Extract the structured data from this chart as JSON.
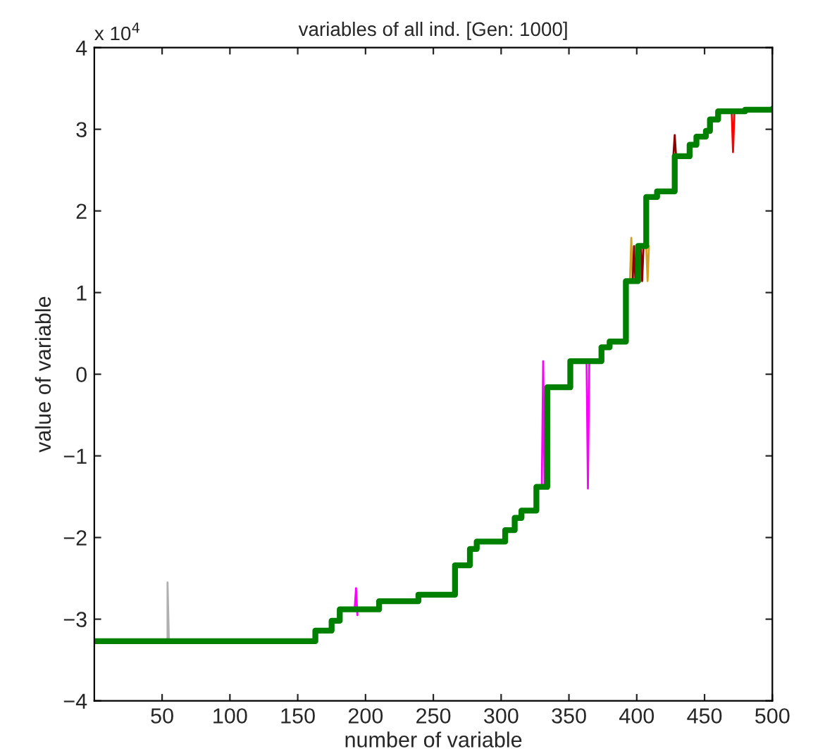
{
  "chart_data": {
    "type": "line",
    "title": "variables of all ind. [Gen: 1000]",
    "xlabel": "number of variable",
    "ylabel": "value of variable",
    "annotations": [
      "x 10$^{4}$"
    ],
    "xlim": [
      0,
      500
    ],
    "ylim": [
      -4,
      4
    ],
    "xticks": [
      50,
      100,
      150,
      200,
      250,
      300,
      350,
      400,
      450,
      500
    ],
    "yticks": [
      {
        "value": -4,
        "label": "−4"
      },
      {
        "value": -3,
        "label": "−3"
      },
      {
        "value": -2,
        "label": "−2"
      },
      {
        "value": -1,
        "label": "−1"
      },
      0,
      1,
      2,
      3,
      4
    ],
    "grid": false,
    "legend": false,
    "marker": "none",
    "line_style": "solid",
    "series": [
      {
        "color": "#b0b0b0",
        "x": [
          54,
          54,
          55
        ],
        "values": [
          -3.27,
          -2.55,
          -3.27
        ]
      },
      {
        "color": "#ff00ff",
        "x": [
          192,
          193,
          194
        ],
        "values": [
          -2.88,
          -2.62,
          -2.95
        ]
      },
      {
        "color": "#ff00ff",
        "x": [
          330,
          331,
          332
        ],
        "values": [
          -1.38,
          0.16,
          -1.38
        ]
      },
      {
        "color": "#ff00ff",
        "x": [
          363,
          364,
          365
        ],
        "values": [
          0.16,
          -1.4,
          0.16
        ]
      },
      {
        "color": "#d4a020",
        "x": [
          395,
          396,
          397
        ],
        "values": [
          1.14,
          1.67,
          1.14
        ]
      },
      {
        "color": "#8b0000",
        "x": [
          397,
          398,
          399
        ],
        "values": [
          1.14,
          1.57,
          1.14
        ]
      },
      {
        "color": "#8b0000",
        "x": [
          403,
          404,
          405
        ],
        "values": [
          1.57,
          1.14,
          1.57
        ]
      },
      {
        "color": "#d4a020",
        "x": [
          407,
          408,
          409
        ],
        "values": [
          1.57,
          1.14,
          1.57
        ]
      },
      {
        "color": "#8b0000",
        "x": [
          427,
          428,
          429
        ],
        "values": [
          2.67,
          2.93,
          2.67
        ]
      },
      {
        "color": "#ff0000",
        "x": [
          470,
          471,
          472
        ],
        "values": [
          3.22,
          2.72,
          3.22
        ]
      },
      {
        "type": "step",
        "color": "#008000",
        "x": [
          0,
          163,
          175,
          181,
          210,
          239,
          266,
          277,
          282,
          303,
          310,
          315,
          326,
          334,
          351,
          374,
          380,
          392,
          401,
          407,
          415,
          428,
          439,
          444,
          451,
          454,
          460,
          480,
          500
        ],
        "values": [
          -3.27,
          -3.14,
          -3.02,
          -2.88,
          -2.78,
          -2.7,
          -2.34,
          -2.14,
          -2.05,
          -1.91,
          -1.76,
          -1.67,
          -1.38,
          -0.16,
          0.16,
          0.33,
          0.4,
          1.14,
          1.57,
          2.17,
          2.24,
          2.67,
          2.81,
          2.91,
          2.98,
          3.12,
          3.22,
          3.24,
          3.25
        ]
      }
    ]
  }
}
